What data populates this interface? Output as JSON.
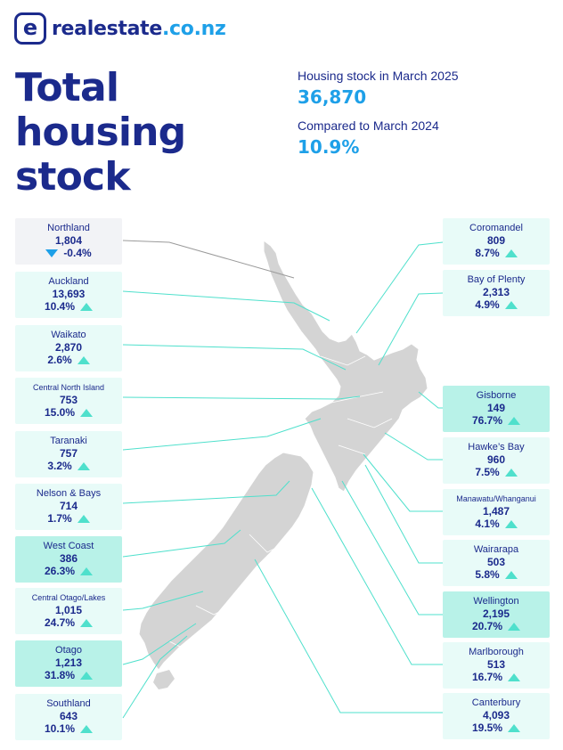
{
  "brand": {
    "name": "realestate",
    "domain": ".co.nz",
    "mark": "e"
  },
  "title": {
    "line1": "Total",
    "line2": "housing",
    "line3": "stock"
  },
  "stats": {
    "stock_label": "Housing stock in March 2025",
    "stock_value": "36,870",
    "compare_label": "Compared to March 2024",
    "compare_value": "10.9%"
  },
  "colors": {
    "navy": "#1b2a8c",
    "blue": "#1ea0e8",
    "teal": "#4fe0cc",
    "land": "#d4d4d4"
  },
  "regions": [
    {
      "name": "Northland",
      "value": "1,804",
      "change": "-0.4%",
      "direction": "down"
    },
    {
      "name": "Auckland",
      "value": "13,693",
      "change": "10.4%",
      "direction": "up"
    },
    {
      "name": "Waikato",
      "value": "2,870",
      "change": "2.6%",
      "direction": "up"
    },
    {
      "name": "Central North Island",
      "value": "753",
      "change": "15.0%",
      "direction": "up"
    },
    {
      "name": "Taranaki",
      "value": "757",
      "change": "3.2%",
      "direction": "up"
    },
    {
      "name": "Nelson & Bays",
      "value": "714",
      "change": "1.7%",
      "direction": "up"
    },
    {
      "name": "West Coast",
      "value": "386",
      "change": "26.3%",
      "direction": "up"
    },
    {
      "name": "Central Otago/Lakes",
      "value": "1,015",
      "change": "24.7%",
      "direction": "up"
    },
    {
      "name": "Otago",
      "value": "1,213",
      "change": "31.8%",
      "direction": "up"
    },
    {
      "name": "Southland",
      "value": "643",
      "change": "10.1%",
      "direction": "up"
    },
    {
      "name": "Coromandel",
      "value": "809",
      "change": "8.7%",
      "direction": "up"
    },
    {
      "name": "Bay of Plenty",
      "value": "2,313",
      "change": "4.9%",
      "direction": "up"
    },
    {
      "name": "Gisborne",
      "value": "149",
      "change": "76.7%",
      "direction": "up"
    },
    {
      "name": "Hawke’s Bay",
      "value": "960",
      "change": "7.5%",
      "direction": "up"
    },
    {
      "name": "Manawatu/Whanganui",
      "value": "1,487",
      "change": "4.1%",
      "direction": "up"
    },
    {
      "name": "Wairarapa",
      "value": "503",
      "change": "5.8%",
      "direction": "up"
    },
    {
      "name": "Wellington",
      "value": "2,195",
      "change": "20.7%",
      "direction": "up"
    },
    {
      "name": "Marlborough",
      "value": "513",
      "change": "16.7%",
      "direction": "up"
    },
    {
      "name": "Canterbury",
      "value": "4,093",
      "change": "19.5%",
      "direction": "up"
    }
  ]
}
